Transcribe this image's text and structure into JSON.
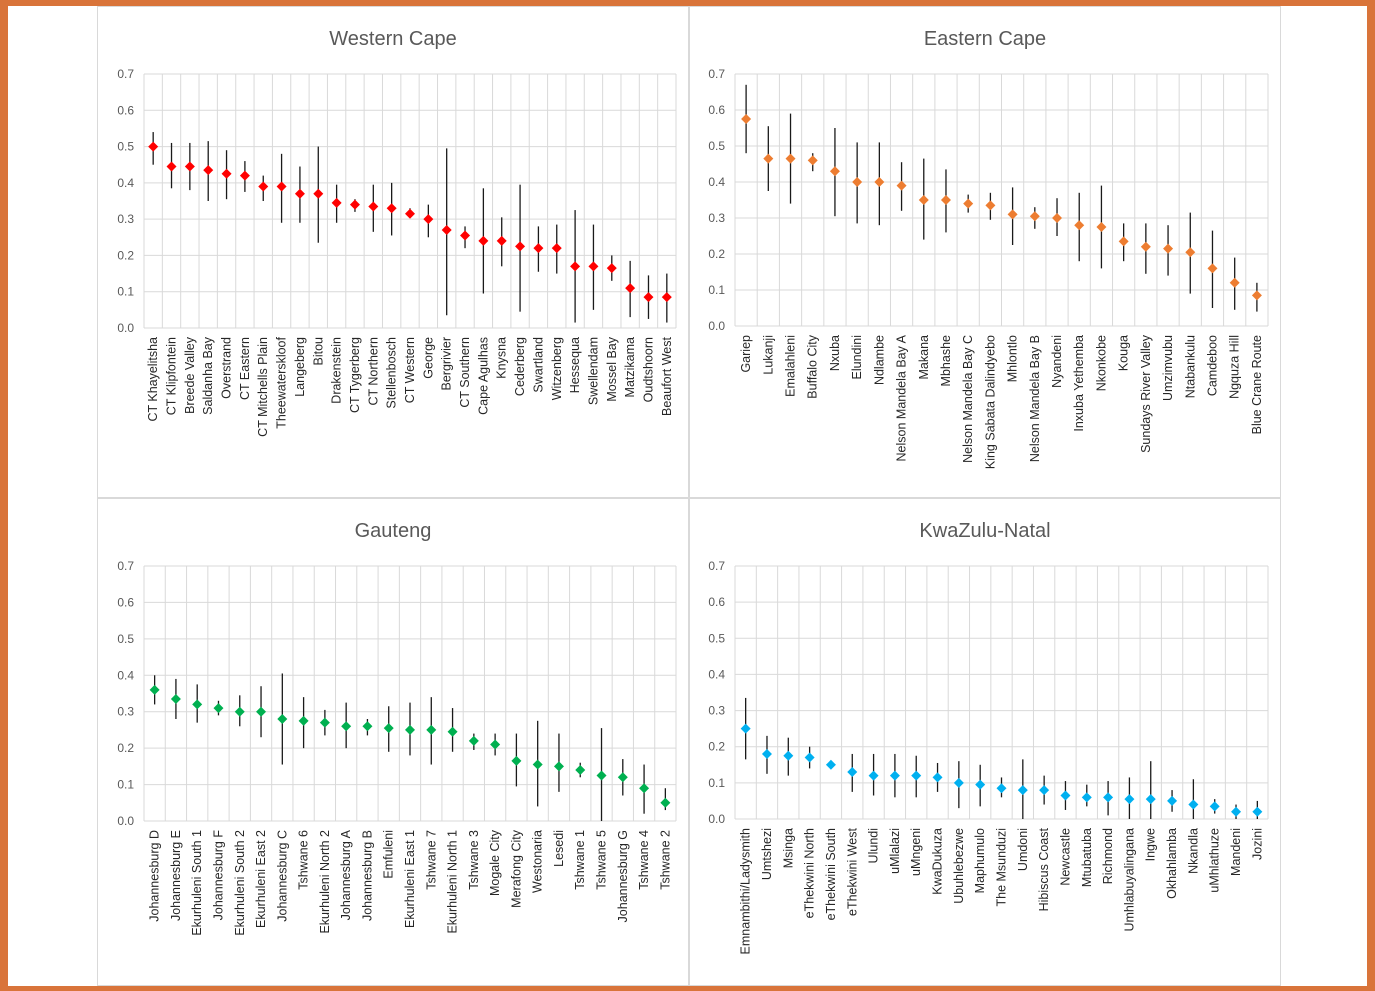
{
  "chart_data": [
    {
      "type": "scatter",
      "title": "Western Cape",
      "ylim": [
        0,
        0.7
      ],
      "yticks": [
        "0.0",
        "0.1",
        "0.2",
        "0.3",
        "0.4",
        "0.5",
        "0.6",
        "0.7"
      ],
      "marker_color": "#ff0000",
      "grid": true,
      "categories": [
        "CT Khayelitsha",
        "CT Klipfontein",
        "Breede Valley",
        "Saldanha Bay",
        "Overstrand",
        "CT Eastern",
        "CT Mitchells Plain",
        "Theewaterskloof",
        "Langeberg",
        "Bitou",
        "Drakenstein",
        "CT Tygerberg",
        "CT Northern",
        "Stellenbosch",
        "CT Western",
        "George",
        "Bergrivier",
        "CT Southern",
        "Cape Agulhas",
        "Knysna",
        "Cederberg",
        "Swartland",
        "Witzenberg",
        "Hessequa",
        "Swellendam",
        "Mossel Bay",
        "Matzikama",
        "Oudtshoorn",
        "Beaufort West"
      ],
      "values": [
        0.5,
        0.445,
        0.445,
        0.435,
        0.425,
        0.42,
        0.39,
        0.39,
        0.37,
        0.37,
        0.345,
        0.34,
        0.335,
        0.33,
        0.315,
        0.3,
        0.27,
        0.255,
        0.24,
        0.24,
        0.225,
        0.22,
        0.22,
        0.17,
        0.17,
        0.165,
        0.11,
        0.085,
        0.085
      ],
      "lower": [
        0.45,
        0.385,
        0.38,
        0.35,
        0.355,
        0.375,
        0.35,
        0.29,
        0.29,
        0.235,
        0.29,
        0.32,
        0.265,
        0.255,
        0.305,
        0.25,
        0.035,
        0.22,
        0.095,
        0.17,
        0.045,
        0.155,
        0.15,
        0.015,
        0.05,
        0.13,
        0.03,
        0.025,
        0.015
      ],
      "upper": [
        0.54,
        0.51,
        0.51,
        0.515,
        0.49,
        0.46,
        0.42,
        0.48,
        0.445,
        0.5,
        0.395,
        0.355,
        0.395,
        0.4,
        0.33,
        0.34,
        0.495,
        0.28,
        0.385,
        0.305,
        0.395,
        0.28,
        0.285,
        0.325,
        0.285,
        0.2,
        0.185,
        0.145,
        0.15
      ]
    },
    {
      "type": "scatter",
      "title": "Eastern Cape",
      "ylim": [
        0,
        0.7
      ],
      "yticks": [
        "0.0",
        "0.1",
        "0.2",
        "0.3",
        "0.4",
        "0.5",
        "0.6",
        "0.7"
      ],
      "marker_color": "#ed7d31",
      "grid": true,
      "categories": [
        "Gariep",
        "Lukanji",
        "Emalahleni",
        "Buffalo City",
        "Nxuba",
        "Elundini",
        "Ndlambe",
        "Nelson Mandela Bay A",
        "Makana",
        "Mbhashe",
        "Nelson Mandela Bay C",
        "King Sabata Dalindyebo",
        "Mhlontlo",
        "Nelson Mandela Bay B",
        "Nyandeni",
        "Inxuba Yethemba",
        "Nkonkobe",
        "Kouga",
        "Sundays River Valley",
        "Umzimvubu",
        "Ntabankulu",
        "Camdeboo",
        "Ngquza Hill",
        "Blue Crane Route"
      ],
      "values": [
        0.575,
        0.465,
        0.465,
        0.46,
        0.43,
        0.4,
        0.4,
        0.39,
        0.35,
        0.35,
        0.34,
        0.335,
        0.31,
        0.305,
        0.3,
        0.28,
        0.275,
        0.235,
        0.22,
        0.215,
        0.205,
        0.16,
        0.12,
        0.085
      ],
      "lower": [
        0.48,
        0.375,
        0.34,
        0.43,
        0.305,
        0.285,
        0.28,
        0.32,
        0.24,
        0.26,
        0.315,
        0.295,
        0.225,
        0.27,
        0.25,
        0.18,
        0.16,
        0.18,
        0.145,
        0.14,
        0.09,
        0.05,
        0.045,
        0.04
      ],
      "upper": [
        0.67,
        0.555,
        0.59,
        0.48,
        0.55,
        0.51,
        0.51,
        0.455,
        0.465,
        0.435,
        0.365,
        0.37,
        0.385,
        0.33,
        0.355,
        0.37,
        0.39,
        0.285,
        0.285,
        0.28,
        0.315,
        0.265,
        0.19,
        0.12
      ]
    },
    {
      "type": "scatter",
      "title": "Gauteng",
      "ylim": [
        0,
        0.7
      ],
      "yticks": [
        "0.0",
        "0.1",
        "0.2",
        "0.3",
        "0.4",
        "0.5",
        "0.6",
        "0.7"
      ],
      "marker_color": "#00b050",
      "grid": true,
      "categories": [
        "Johannesburg D",
        "Johannesburg E",
        "Ekurhuleni South 1",
        "Johannesburg F",
        "Ekurhuleni South 2",
        "Ekurhuleni East 2",
        "Johannesburg C",
        "Tshwane 6",
        "Ekurhuleni North 2",
        "Johannesburg A",
        "Johannesburg B",
        "Emfuleni",
        "Ekurhuleni East 1",
        "Tshwane 7",
        "Ekurhuleni North 1",
        "Tshwane 3",
        "Mogale City",
        "Merafong City",
        "Westonaria",
        "Lesedi",
        "Tshwane 1",
        "Tshwane 5",
        "Johannesburg G",
        "Tshwane 4",
        "Tshwane 2"
      ],
      "values": [
        0.36,
        0.335,
        0.32,
        0.31,
        0.3,
        0.3,
        0.28,
        0.275,
        0.27,
        0.26,
        0.26,
        0.255,
        0.25,
        0.25,
        0.245,
        0.22,
        0.21,
        0.165,
        0.155,
        0.15,
        0.14,
        0.125,
        0.12,
        0.09,
        0.05
      ],
      "lower": [
        0.32,
        0.28,
        0.27,
        0.29,
        0.26,
        0.23,
        0.155,
        0.2,
        0.235,
        0.2,
        0.235,
        0.19,
        0.18,
        0.155,
        0.19,
        0.195,
        0.18,
        0.095,
        0.04,
        0.08,
        0.12,
        0.0,
        0.07,
        0.02,
        0.03
      ],
      "upper": [
        0.4,
        0.39,
        0.375,
        0.33,
        0.345,
        0.37,
        0.405,
        0.34,
        0.305,
        0.325,
        0.28,
        0.315,
        0.325,
        0.34,
        0.31,
        0.24,
        0.24,
        0.24,
        0.275,
        0.24,
        0.16,
        0.255,
        0.17,
        0.155,
        0.09
      ]
    },
    {
      "type": "scatter",
      "title": "KwaZulu-Natal",
      "ylim": [
        0,
        0.7
      ],
      "yticks": [
        "0.0",
        "0.1",
        "0.2",
        "0.3",
        "0.4",
        "0.5",
        "0.6",
        "0.7"
      ],
      "marker_color": "#00b0f0",
      "grid": true,
      "categories": [
        "Emnambithi/Ladysmith",
        "Umtshezi",
        "Msinga",
        "eThekwini North",
        "eThekwini South",
        "eThekwini West",
        "Ulundi",
        "uMlalazi",
        "uMngeni",
        "KwaDukuza",
        "Ubuhlebezwe",
        "Maphumulo",
        "The Msunduzi",
        "Umdoni",
        "Hibiscus Coast",
        "Newcastle",
        "Mtubatuba",
        "Richmond",
        "Umhlabuyalingana",
        "Ingwe",
        "Okhahlamba",
        "Nkandla",
        "uMhlathuze",
        "Mandeni",
        "Jozini"
      ],
      "values": [
        0.25,
        0.18,
        0.175,
        0.17,
        0.15,
        0.13,
        0.12,
        0.12,
        0.12,
        0.115,
        0.1,
        0.095,
        0.085,
        0.08,
        0.08,
        0.065,
        0.06,
        0.06,
        0.055,
        0.055,
        0.05,
        0.04,
        0.035,
        0.02,
        0.02
      ],
      "lower": [
        0.165,
        0.125,
        0.12,
        0.14,
        0.14,
        0.075,
        0.065,
        0.06,
        0.06,
        0.075,
        0.03,
        0.035,
        0.06,
        0.0,
        0.04,
        0.025,
        0.035,
        0.01,
        0.0,
        0.0,
        0.02,
        0.0,
        0.015,
        0.0,
        0.0
      ],
      "upper": [
        0.335,
        0.23,
        0.225,
        0.2,
        0.155,
        0.18,
        0.18,
        0.18,
        0.175,
        0.155,
        0.16,
        0.15,
        0.115,
        0.165,
        0.12,
        0.105,
        0.095,
        0.105,
        0.115,
        0.16,
        0.08,
        0.11,
        0.055,
        0.04,
        0.05
      ]
    }
  ]
}
